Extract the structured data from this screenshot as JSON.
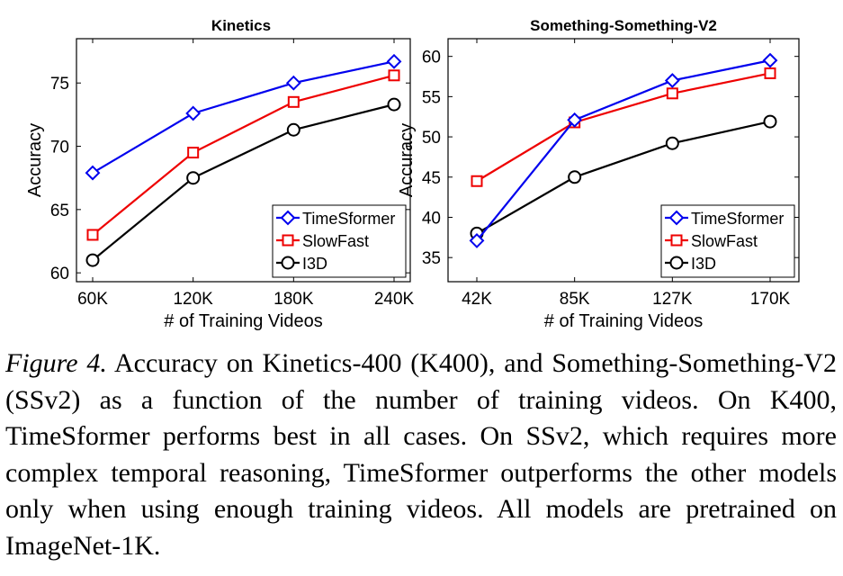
{
  "chart_data": [
    {
      "type": "line",
      "title": "Kinetics",
      "xlabel": "# of Training Videos",
      "ylabel": "Accuracy",
      "categories": [
        "60K",
        "120K",
        "180K",
        "240K"
      ],
      "ylim": [
        59.3,
        78.5
      ],
      "yticks": [
        60,
        65,
        70,
        75
      ],
      "legend_position": "bottom-right",
      "series": [
        {
          "name": "TimeSformer",
          "marker": "diamond",
          "color": "#0000ee",
          "values": [
            67.9,
            72.6,
            75.0,
            76.7
          ]
        },
        {
          "name": "SlowFast",
          "marker": "square",
          "color": "#ee0000",
          "values": [
            63.0,
            69.5,
            73.5,
            75.6
          ]
        },
        {
          "name": "I3D",
          "marker": "circle",
          "color": "#000000",
          "values": [
            61.0,
            67.5,
            71.3,
            73.3
          ]
        }
      ]
    },
    {
      "type": "line",
      "title": "Something-Something-V2",
      "xlabel": "# of Training Videos",
      "ylabel": "Accuracy",
      "categories": [
        "42K",
        "85K",
        "127K",
        "170K"
      ],
      "ylim": [
        32.0,
        62.2
      ],
      "yticks": [
        35,
        40,
        45,
        50,
        55,
        60
      ],
      "legend_position": "bottom-right",
      "series": [
        {
          "name": "TimeSformer",
          "marker": "diamond",
          "color": "#0000ee",
          "values": [
            37.1,
            52.1,
            57.0,
            59.5
          ]
        },
        {
          "name": "SlowFast",
          "marker": "square",
          "color": "#ee0000",
          "values": [
            44.5,
            51.8,
            55.4,
            57.9
          ]
        },
        {
          "name": "I3D",
          "marker": "circle",
          "color": "#000000",
          "values": [
            38.0,
            45.0,
            49.2,
            51.9
          ]
        }
      ]
    }
  ],
  "caption": {
    "label": "Figure 4.",
    "text": " Accuracy on Kinetics-400 (K400), and Something-Something-V2 (SSv2) as a function of the number of training videos. On K400, TimeSformer performs best in all cases. On SSv2, which requires more complex temporal reasoning, TimeSformer outperforms the other models only when using enough training videos. All models are pretrained on ImageNet-1K."
  }
}
